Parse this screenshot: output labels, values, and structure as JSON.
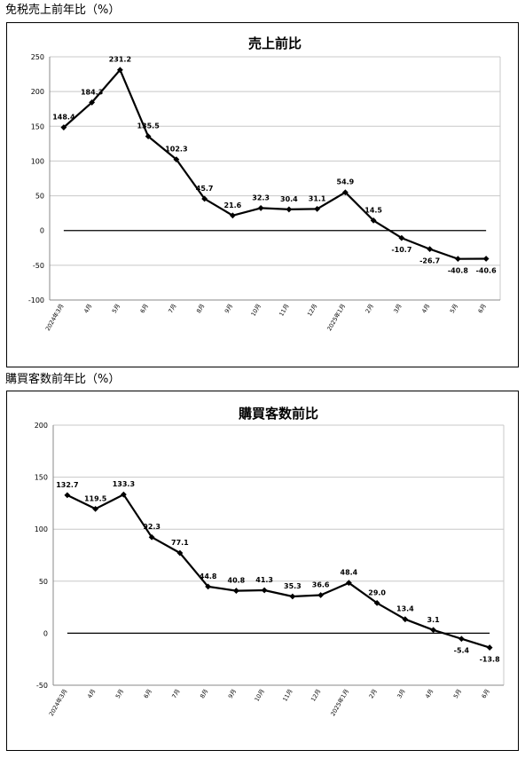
{
  "sections": [
    {
      "heading": "免税売上前年比（%）"
    },
    {
      "heading": "購買客数前年比（%）"
    }
  ],
  "chart_data": [
    {
      "type": "line",
      "title": "売上前比",
      "categories": [
        "2024年3月",
        "4月",
        "5月",
        "6月",
        "7月",
        "8月",
        "9月",
        "10月",
        "11月",
        "12月",
        "2025年1月",
        "2月",
        "3月",
        "4月",
        "5月",
        "6月"
      ],
      "values": [
        148.4,
        184.3,
        231.2,
        135.5,
        102.3,
        45.7,
        21.6,
        32.3,
        30.4,
        31.1,
        54.9,
        14.5,
        -10.7,
        -26.7,
        -40.8,
        -40.6
      ],
      "labels": [
        "148.4",
        "184.3",
        "231.2",
        "135.5",
        "102.3",
        "45.7",
        "21.6",
        "32.3",
        "30.4",
        "31.1",
        "54.9",
        "14.5",
        "-10.7",
        "-26.7",
        "-40.8",
        "-40.6"
      ],
      "ylim": [
        -100,
        250
      ],
      "yticks": [
        250,
        200,
        150,
        100,
        50,
        0,
        -50,
        -100
      ],
      "grid": true,
      "zero_line": true,
      "line_color": "#000000",
      "grid_color": "#c8c8c8"
    },
    {
      "type": "line",
      "title": "購買客数前比",
      "categories": [
        "2024年3月",
        "4月",
        "5月",
        "6月",
        "7月",
        "8月",
        "9月",
        "10月",
        "11月",
        "12月",
        "2025年1月",
        "2月",
        "3月",
        "4月",
        "5月",
        "6月"
      ],
      "values": [
        132.7,
        119.5,
        133.3,
        92.3,
        77.1,
        44.8,
        40.8,
        41.3,
        35.3,
        36.6,
        48.4,
        29.0,
        13.4,
        3.1,
        -5.4,
        -13.8
      ],
      "labels": [
        "132.7",
        "119.5",
        "133.3",
        "92.3",
        "77.1",
        "44.8",
        "40.8",
        "41.3",
        "35.3",
        "36.6",
        "48.4",
        "29.0",
        "13.4",
        "3.1",
        "-5.4",
        "-13.8"
      ],
      "ylim": [
        -50,
        200
      ],
      "yticks": [
        200,
        150,
        100,
        50,
        0,
        -50
      ],
      "grid": true,
      "zero_line": true,
      "line_color": "#000000",
      "grid_color": "#c8c8c8"
    }
  ]
}
